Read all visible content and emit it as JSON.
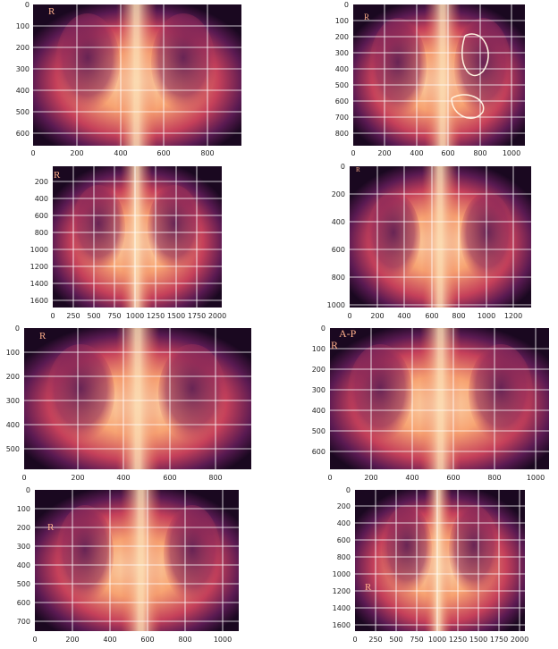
{
  "colors": {
    "grid": "#ffffff",
    "background": "#ffffff",
    "overlay_text": "#ffb08a",
    "colormap": [
      "#0a0612",
      "#2a0b38",
      "#5a1a52",
      "#8e2a5a",
      "#c5405a",
      "#e86a4f",
      "#f7a372",
      "#fbd9b0"
    ]
  },
  "panels": [
    {
      "id": "p1",
      "overlay": "R",
      "x_ticks": [
        "0",
        "200",
        "400",
        "600",
        "800"
      ],
      "y_ticks": [
        "0",
        "100",
        "200",
        "300",
        "400",
        "500",
        "600"
      ]
    },
    {
      "id": "p2",
      "overlay": "R",
      "x_ticks": [
        "0",
        "200",
        "400",
        "600",
        "800",
        "1000"
      ],
      "y_ticks": [
        "0",
        "100",
        "200",
        "300",
        "400",
        "500",
        "600",
        "700",
        "800"
      ]
    },
    {
      "id": "p3",
      "overlay": "R",
      "x_ticks": [
        "0",
        "250",
        "500",
        "750",
        "1000",
        "1250",
        "1500",
        "1750",
        "2000"
      ],
      "y_ticks": [
        "200",
        "400",
        "600",
        "800",
        "1000",
        "1200",
        "1400",
        "1600"
      ]
    },
    {
      "id": "p4",
      "overlay": "R",
      "x_ticks": [
        "0",
        "200",
        "400",
        "600",
        "800",
        "1000",
        "1200"
      ],
      "y_ticks": [
        "0",
        "200",
        "400",
        "600",
        "800",
        "1000"
      ]
    },
    {
      "id": "p5",
      "overlay": "R",
      "x_ticks": [
        "0",
        "200",
        "400",
        "600",
        "800"
      ],
      "y_ticks": [
        "0",
        "100",
        "200",
        "300",
        "400",
        "500"
      ]
    },
    {
      "id": "p6",
      "overlay": "A-P",
      "overlay2": "R",
      "x_ticks": [
        "0",
        "200",
        "400",
        "600",
        "800",
        "1000"
      ],
      "y_ticks": [
        "0",
        "100",
        "200",
        "300",
        "400",
        "500",
        "600"
      ]
    },
    {
      "id": "p7",
      "overlay": "R",
      "x_ticks": [
        "0",
        "200",
        "400",
        "600",
        "800",
        "1000"
      ],
      "y_ticks": [
        "0",
        "100",
        "200",
        "300",
        "400",
        "500",
        "600",
        "700"
      ]
    },
    {
      "id": "p8",
      "overlay": "R",
      "x_ticks": [
        "0",
        "250",
        "500",
        "750",
        "1000",
        "1250",
        "1500",
        "1750",
        "2000"
      ],
      "y_ticks": [
        "0",
        "200",
        "400",
        "600",
        "800",
        "1000",
        "1200",
        "1400",
        "1600"
      ]
    }
  ]
}
